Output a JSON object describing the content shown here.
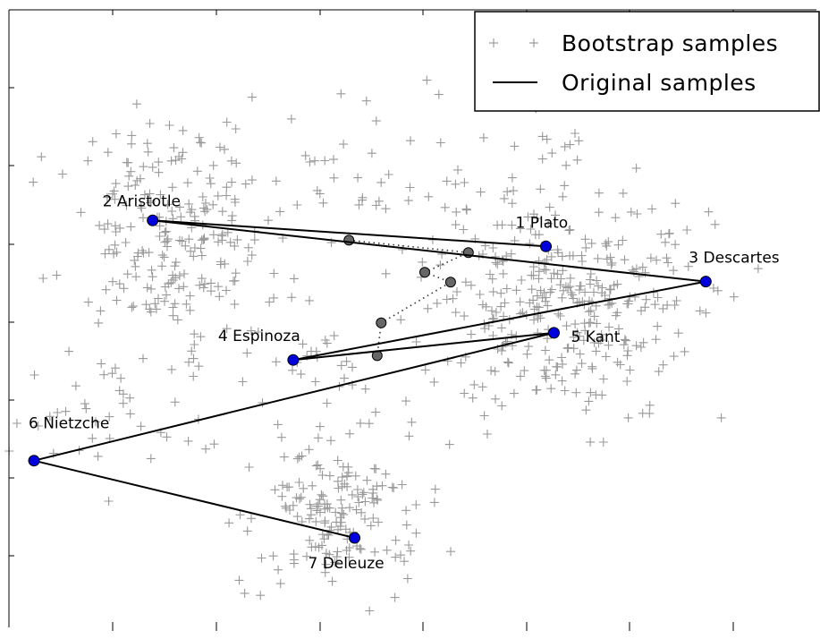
{
  "chart_data": {
    "type": "scatter",
    "title": "",
    "xlabel": "",
    "ylabel": "",
    "xlim": [
      0,
      1
    ],
    "ylim": [
      0,
      1
    ],
    "grid": false,
    "legend_placement": "top-right",
    "legend": [
      {
        "label": "Bootstrap samples",
        "style": "plus-markers",
        "color": "#999999"
      },
      {
        "label": "Original samples",
        "style": "solid-line",
        "color": "#000000"
      }
    ],
    "original_samples": {
      "name": "Original samples",
      "line_color": "#000000",
      "marker_color": "#0000dd",
      "points": [
        {
          "label": "1 Plato",
          "x": 0.665,
          "y": 0.617
        },
        {
          "label": "2 Aristotle",
          "x": 0.178,
          "y": 0.659
        },
        {
          "label": "3 Descartes",
          "x": 0.863,
          "y": 0.56
        },
        {
          "label": "4 Espinoza",
          "x": 0.352,
          "y": 0.433
        },
        {
          "label": "5 Kant",
          "x": 0.675,
          "y": 0.477
        },
        {
          "label": "6 Nietzche",
          "x": 0.031,
          "y": 0.27
        },
        {
          "label": "7 Deleuze",
          "x": 0.428,
          "y": 0.145
        }
      ]
    },
    "intermediate_points": {
      "color": "#666666",
      "style": "dotted",
      "points": [
        {
          "x": 0.421,
          "y": 0.627
        },
        {
          "x": 0.569,
          "y": 0.607
        },
        {
          "x": 0.515,
          "y": 0.575
        },
        {
          "x": 0.547,
          "y": 0.559
        },
        {
          "x": 0.461,
          "y": 0.493
        },
        {
          "x": 0.456,
          "y": 0.44
        }
      ]
    },
    "bootstrap_samples": {
      "name": "Bootstrap samples",
      "color": "#999999",
      "clusters": [
        {
          "cx": 0.2,
          "cy": 0.64,
          "sx": 0.065,
          "sy": 0.09,
          "n": 230
        },
        {
          "cx": 0.68,
          "cy": 0.53,
          "sx": 0.085,
          "sy": 0.095,
          "n": 360
        },
        {
          "cx": 0.41,
          "cy": 0.185,
          "sx": 0.055,
          "sy": 0.055,
          "n": 170
        },
        {
          "cx": 0.11,
          "cy": 0.33,
          "sx": 0.07,
          "sy": 0.07,
          "n": 45
        },
        {
          "cx": 0.48,
          "cy": 0.74,
          "sx": 0.12,
          "sy": 0.09,
          "n": 55
        },
        {
          "cx": 0.38,
          "cy": 0.44,
          "sx": 0.06,
          "sy": 0.05,
          "n": 30
        }
      ]
    }
  }
}
